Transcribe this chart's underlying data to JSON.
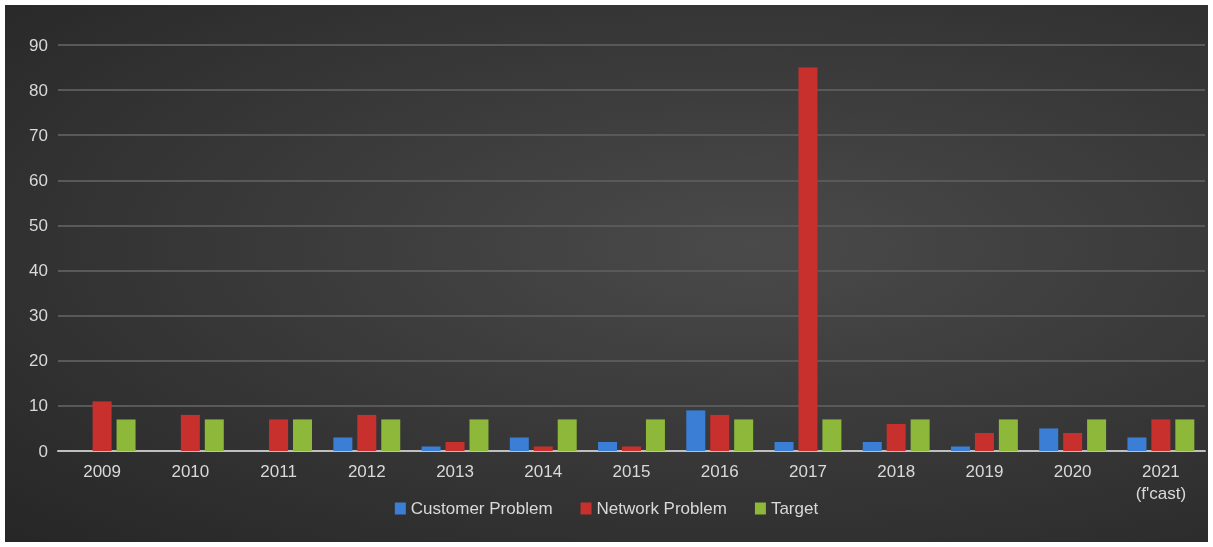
{
  "chart_data": {
    "type": "bar",
    "categories": [
      "2009",
      "2010",
      "2011",
      "2012",
      "2013",
      "2014",
      "2015",
      "2016",
      "2017",
      "2018",
      "2019",
      "2020",
      "2021\n(f'cast)"
    ],
    "series": [
      {
        "name": "Customer Problem",
        "color": "#3a7fd5",
        "values": [
          0,
          0,
          0,
          3,
          1,
          3,
          2,
          9,
          2,
          2,
          1,
          5,
          3
        ]
      },
      {
        "name": "Network Problem",
        "color": "#c8302e",
        "values": [
          11,
          8,
          7,
          8,
          2,
          1,
          1,
          8,
          85,
          6,
          4,
          4,
          7
        ]
      },
      {
        "name": "Target",
        "color": "#8db83a",
        "values": [
          7,
          7,
          7,
          7,
          7,
          7,
          7,
          7,
          7,
          7,
          7,
          7,
          7
        ]
      }
    ],
    "ylim": [
      0,
      90
    ],
    "yticks": [
      0,
      10,
      20,
      30,
      40,
      50,
      60,
      70,
      80,
      90
    ],
    "grid": "y",
    "legend": "bottom"
  }
}
